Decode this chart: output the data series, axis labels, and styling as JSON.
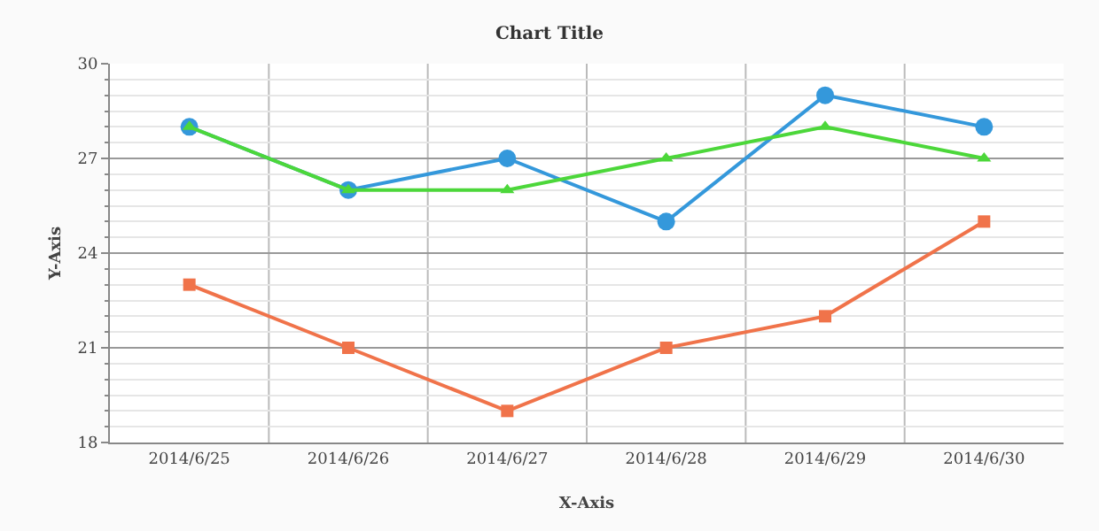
{
  "chart_data": {
    "type": "line",
    "title": "Chart Title",
    "xlabel": "X-Axis",
    "ylabel": "Y-Axis",
    "categories": [
      "2014/6/25",
      "2014/6/26",
      "2014/6/27",
      "2014/6/28",
      "2014/6/29",
      "2014/6/30"
    ],
    "series": [
      {
        "color": "#3498db",
        "marker": "circle",
        "values": [
          28,
          26,
          27,
          25,
          29,
          28
        ]
      },
      {
        "color": "#4cd73a",
        "marker": "triangle",
        "values": [
          28,
          26,
          26,
          27,
          28,
          27
        ]
      },
      {
        "color": "#f0734a",
        "marker": "square",
        "values": [
          23,
          21,
          19,
          21,
          22,
          25
        ]
      }
    ],
    "ylim": [
      18,
      30
    ],
    "yticks": [
      18,
      21,
      24,
      27,
      30
    ],
    "grid": true,
    "line_style": "solid"
  }
}
